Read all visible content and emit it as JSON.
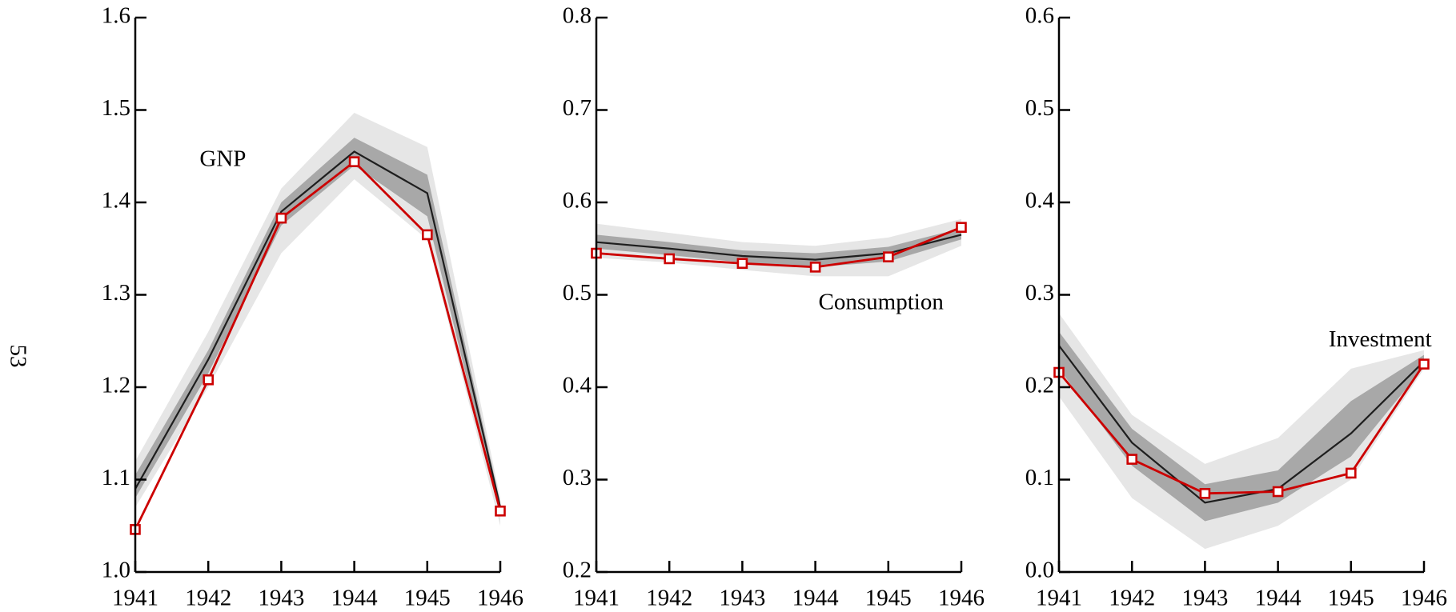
{
  "page_number": "53",
  "chart_data": [
    {
      "type": "fan",
      "annotation": {
        "text": "GNP",
        "x": 1942.2,
        "y": 1.445
      },
      "x": [
        1941,
        1942,
        1943,
        1944,
        1945,
        1946
      ],
      "xlim": [
        1941,
        1946
      ],
      "xticks": [
        1941,
        1942,
        1943,
        1944,
        1945,
        1946
      ],
      "ylim": [
        1.0,
        1.6
      ],
      "yticks": [
        {
          "value": 1.0,
          "label": "1.0"
        },
        1.1,
        1.2,
        1.3,
        1.4,
        1.5,
        1.6
      ],
      "bands": [
        {
          "color": "#e6e6e6",
          "lower": [
            1.07,
            1.2,
            1.345,
            1.425,
            1.36,
            1.05
          ],
          "upper": [
            1.12,
            1.26,
            1.415,
            1.497,
            1.46,
            1.08
          ]
        },
        {
          "color": "#a8a8a8",
          "lower": [
            1.08,
            1.215,
            1.375,
            1.44,
            1.385,
            1.06
          ],
          "upper": [
            1.105,
            1.24,
            1.4,
            1.47,
            1.43,
            1.075
          ]
        }
      ],
      "series": [
        {
          "color": "#1e1e1e",
          "values": [
            1.09,
            1.23,
            1.39,
            1.455,
            1.41,
            1.07
          ]
        },
        {
          "color": "#cc0000",
          "marker": "square",
          "values": [
            1.046,
            1.208,
            1.383,
            1.444,
            1.365,
            1.066
          ]
        }
      ]
    },
    {
      "type": "fan",
      "annotation": {
        "text": "Consumption",
        "x": 1944.9,
        "y": 0.49
      },
      "x": [
        1941,
        1942,
        1943,
        1944,
        1945,
        1946
      ],
      "xlim": [
        1941,
        1946
      ],
      "xticks": [
        1941,
        1942,
        1943,
        1944,
        1945,
        1946
      ],
      "ylim": [
        0.2,
        0.8
      ],
      "yticks": [
        0.2,
        0.3,
        0.4,
        0.5,
        0.6,
        0.7,
        0.8
      ],
      "bands": [
        {
          "color": "#e6e6e6",
          "lower": [
            0.54,
            0.535,
            0.527,
            0.52,
            0.52,
            0.553
          ],
          "upper": [
            0.577,
            0.567,
            0.557,
            0.553,
            0.562,
            0.582
          ]
        },
        {
          "color": "#a8a8a8",
          "lower": [
            0.55,
            0.543,
            0.535,
            0.53,
            0.536,
            0.56
          ],
          "upper": [
            0.565,
            0.557,
            0.548,
            0.545,
            0.552,
            0.572
          ]
        }
      ],
      "series": [
        {
          "color": "#1e1e1e",
          "values": [
            0.557,
            0.55,
            0.542,
            0.538,
            0.545,
            0.565
          ]
        },
        {
          "color": "#cc0000",
          "marker": "square",
          "values": [
            0.545,
            0.539,
            0.534,
            0.53,
            0.541,
            0.573
          ]
        }
      ]
    },
    {
      "type": "fan",
      "annotation": {
        "text": "Investment",
        "x": 1945.4,
        "y": 0.25
      },
      "x": [
        1941,
        1942,
        1943,
        1944,
        1945,
        1946
      ],
      "xlim": [
        1941,
        1946
      ],
      "xticks": [
        1941,
        1942,
        1943,
        1944,
        1945,
        1946
      ],
      "ylim": [
        0.0,
        0.6
      ],
      "yticks": [
        {
          "value": 0.0,
          "label": "0.0"
        },
        0.1,
        0.2,
        0.3,
        0.4,
        0.5,
        0.6
      ],
      "bands": [
        {
          "color": "#e6e6e6",
          "lower": [
            0.19,
            0.08,
            0.025,
            0.05,
            0.1,
            0.22
          ],
          "upper": [
            0.28,
            0.17,
            0.117,
            0.145,
            0.22,
            0.24
          ]
        },
        {
          "color": "#a8a8a8",
          "lower": [
            0.22,
            0.115,
            0.055,
            0.075,
            0.125,
            0.222
          ],
          "upper": [
            0.26,
            0.155,
            0.095,
            0.11,
            0.185,
            0.235
          ]
        }
      ],
      "series": [
        {
          "color": "#1e1e1e",
          "values": [
            0.245,
            0.14,
            0.075,
            0.09,
            0.15,
            0.228
          ]
        },
        {
          "color": "#cc0000",
          "marker": "square",
          "values": [
            0.216,
            0.122,
            0.085,
            0.087,
            0.107,
            0.225
          ]
        }
      ]
    }
  ]
}
